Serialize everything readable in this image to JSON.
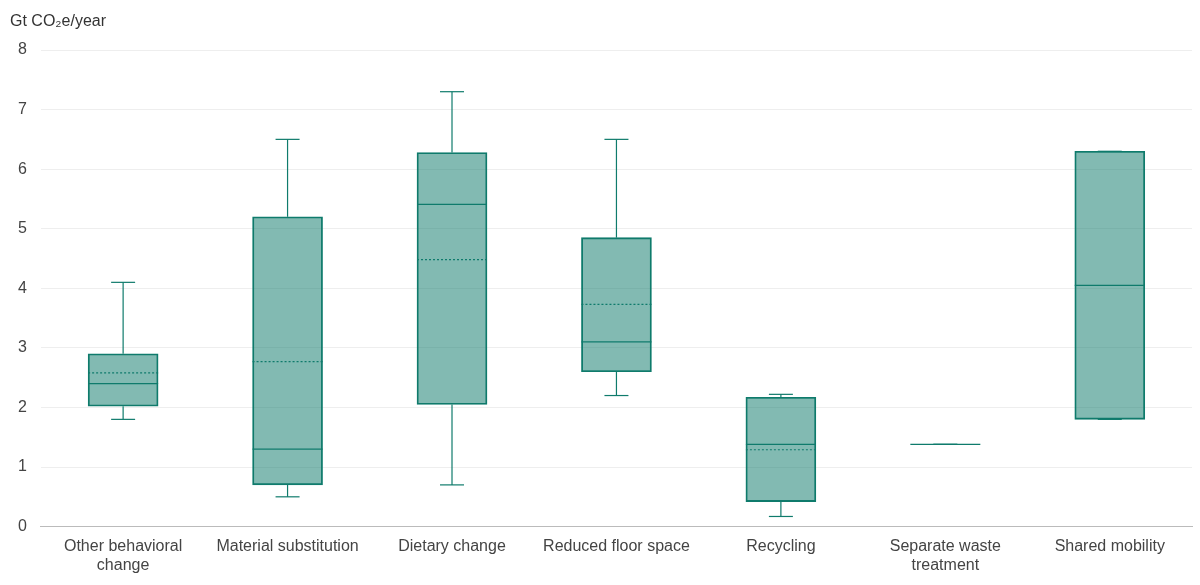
{
  "chart_data": {
    "type": "box",
    "ylabel": "Gt CO₂e/year",
    "categories": [
      "Other behavioral change",
      "Material substitution",
      "Dietary change",
      "Reduced floor space",
      "Recycling",
      "Separate waste treatment",
      "Shared mobility"
    ],
    "boxes": [
      {
        "low": 1.8,
        "q1": 2.02,
        "median": 2.4,
        "q3": 2.9,
        "high": 4.1,
        "mean": 2.58
      },
      {
        "low": 0.5,
        "q1": 0.7,
        "median": 1.3,
        "q3": 5.2,
        "high": 6.5,
        "mean": 2.77
      },
      {
        "low": 0.7,
        "q1": 2.05,
        "median": 5.41,
        "q3": 6.28,
        "high": 7.3,
        "mean": 4.48
      },
      {
        "low": 2.2,
        "q1": 2.6,
        "median": 3.1,
        "q3": 4.85,
        "high": 6.5,
        "mean": 3.73
      },
      {
        "low": 0.17,
        "q1": 0.42,
        "median": 1.38,
        "q3": 2.17,
        "high": 2.22,
        "mean": 1.29
      },
      {
        "low": 1.38,
        "q1": 1.38,
        "median": 1.38,
        "q3": 1.38,
        "high": 1.38
      },
      {
        "low": 1.8,
        "q1": 1.8,
        "median": 4.05,
        "q3": 6.3,
        "high": 6.3
      }
    ],
    "color": "#0f7b6c",
    "ylim": [
      0,
      8
    ],
    "yticks": [
      0,
      1,
      2,
      3,
      4,
      5,
      6,
      7,
      8
    ],
    "grid": "y",
    "legend": false
  }
}
